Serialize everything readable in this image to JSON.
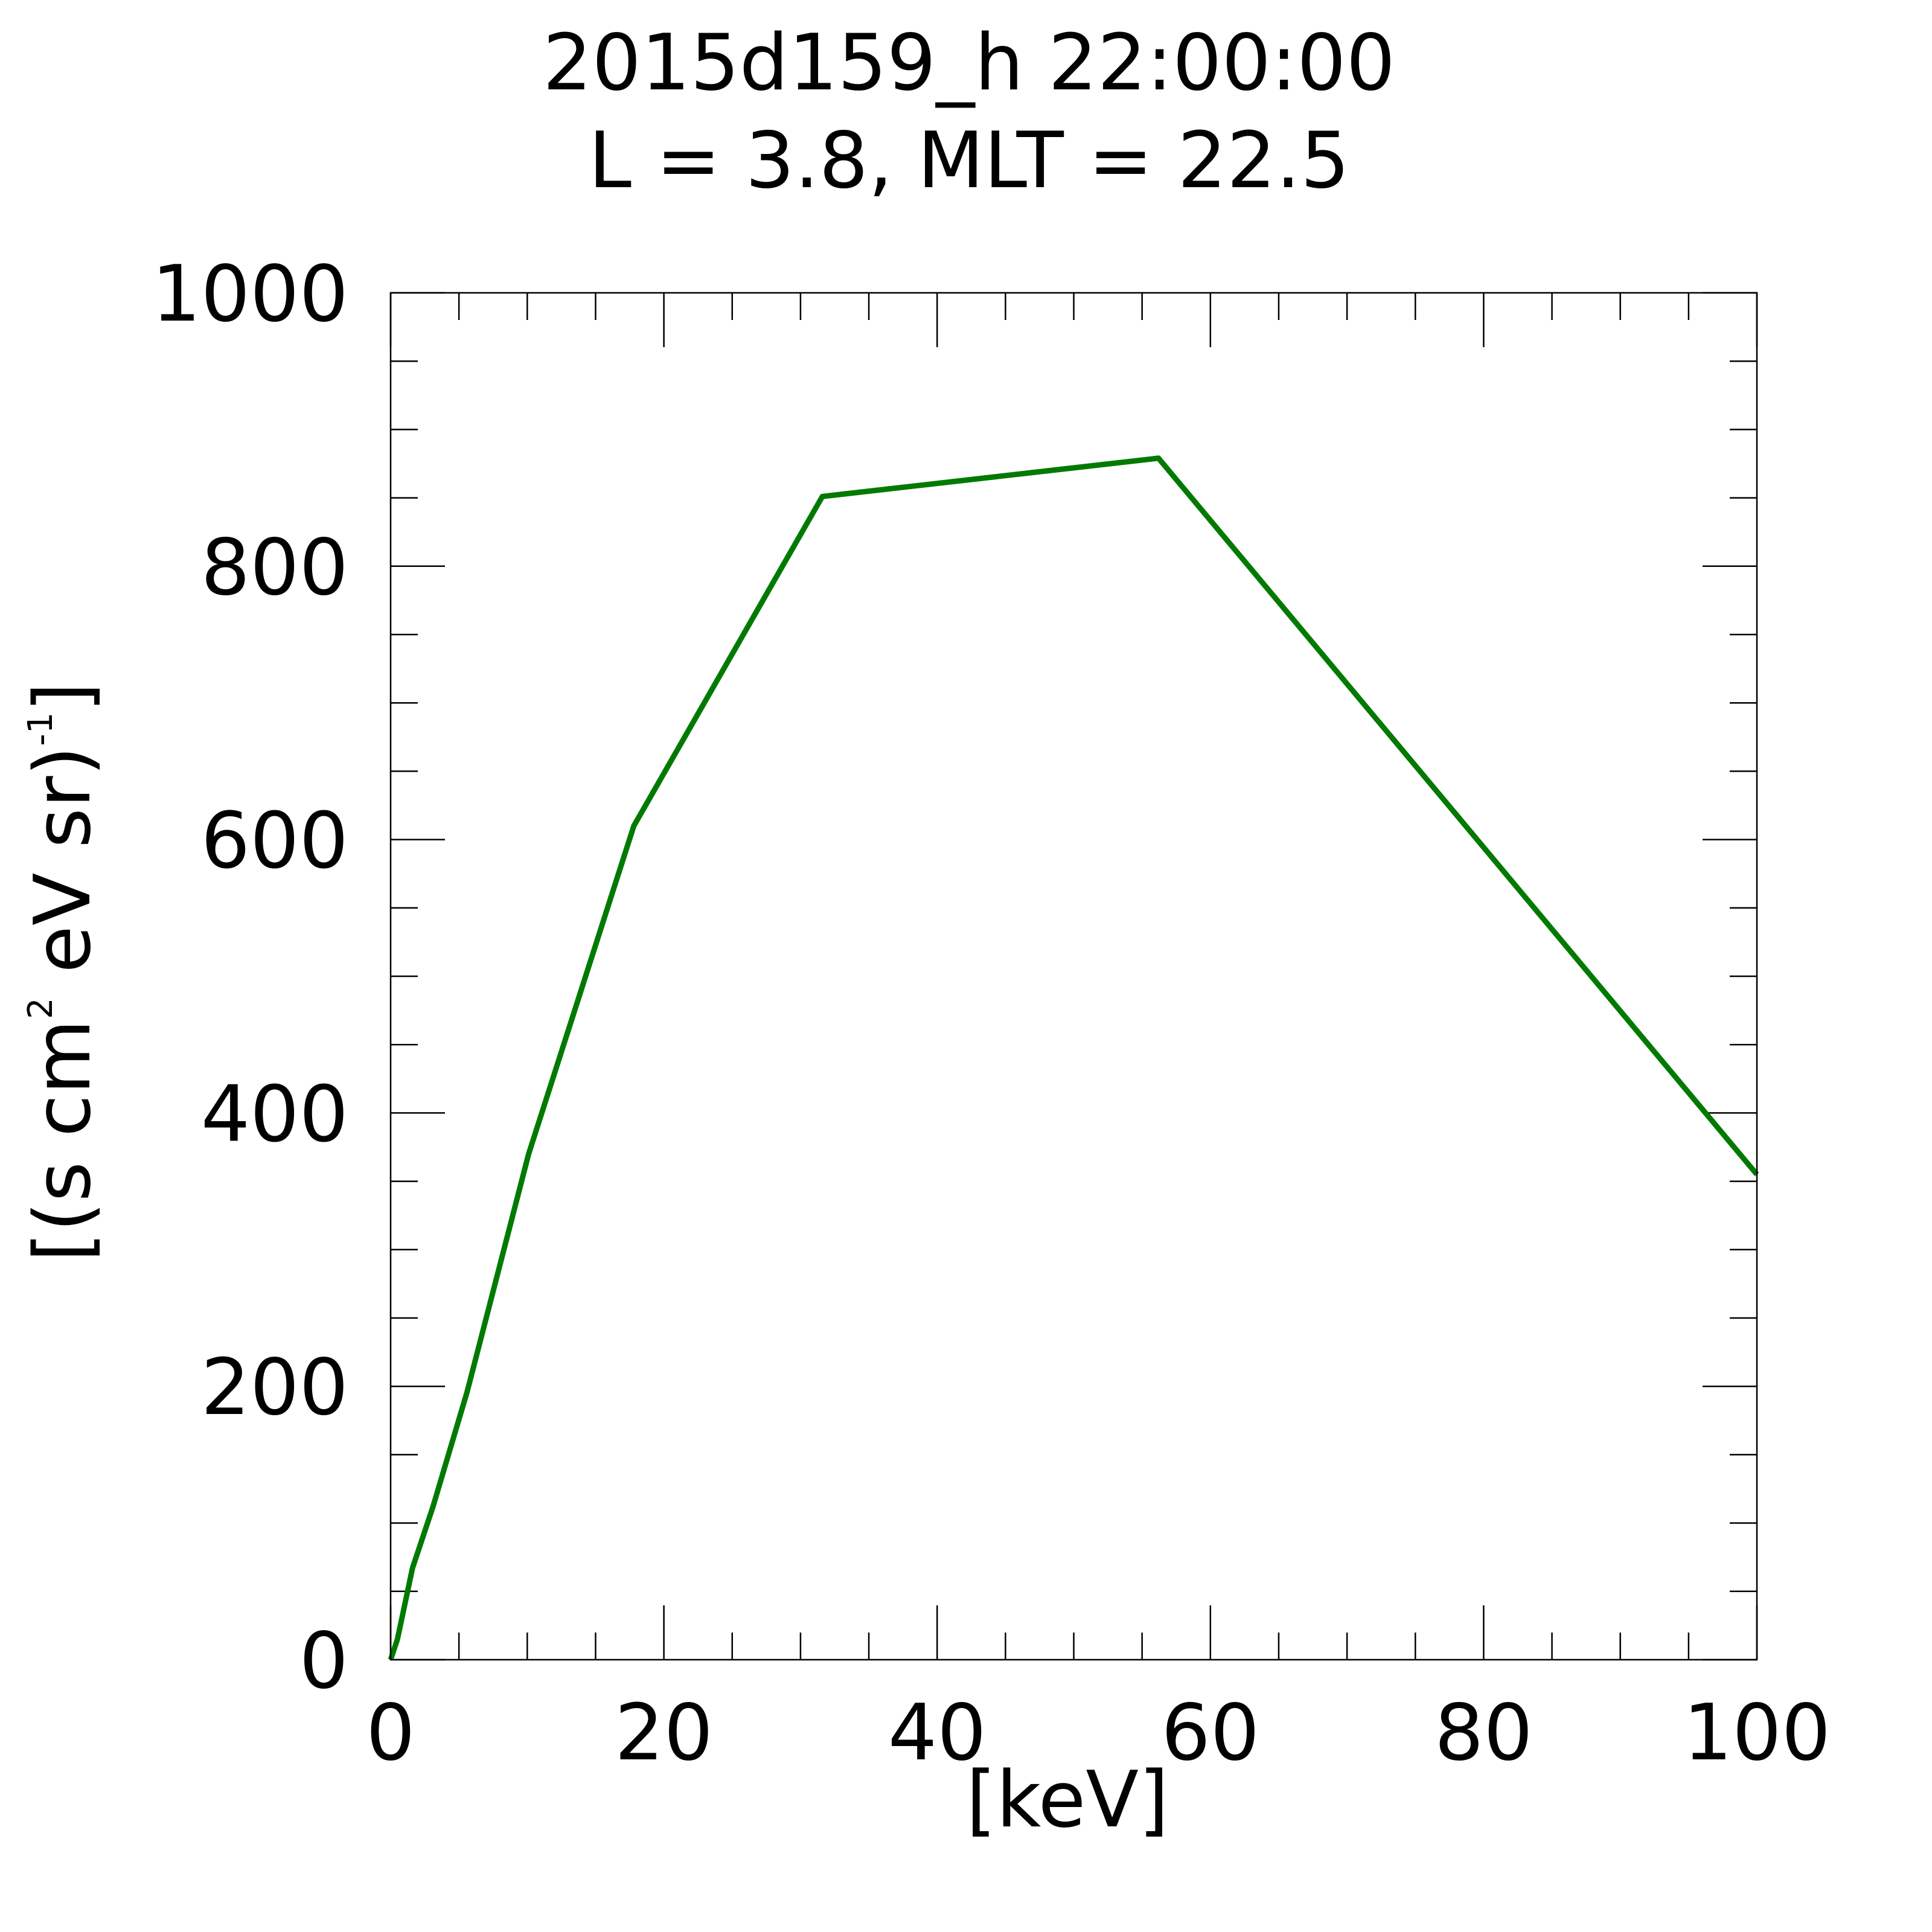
{
  "chart_data": {
    "type": "line",
    "title": "2015d159_h  22:00:00",
    "subtitle": "L = 3.8, MLT = 22.5",
    "xlabel": "[keV]",
    "ylabel": {
      "prefix": "[(s cm",
      "sup1": "2",
      "middle": " eV sr)",
      "sup2": "-1",
      "suffix": "]"
    },
    "xlim": [
      0,
      100
    ],
    "ylim": [
      0,
      1000
    ],
    "x_major_ticks": [
      0,
      20,
      40,
      60,
      80,
      100
    ],
    "x_tick_labels": [
      "0",
      "20",
      "40",
      "60",
      "80",
      "100"
    ],
    "x_minor_step": 5,
    "y_major_ticks": [
      0,
      200,
      400,
      600,
      800,
      1000
    ],
    "y_tick_labels": [
      "0",
      "200",
      "400",
      "600",
      "800",
      "1000"
    ],
    "y_minor_step": 50,
    "grid": false,
    "series": [
      {
        "color": "#007a00",
        "x": [
          0,
          0.5,
          1.6,
          3.1,
          5.6,
          10.1,
          17.8,
          31.6,
          56.2,
          100
        ],
        "y": [
          0,
          15,
          67,
          112,
          196,
          370,
          610,
          851,
          879,
          355
        ]
      }
    ]
  }
}
